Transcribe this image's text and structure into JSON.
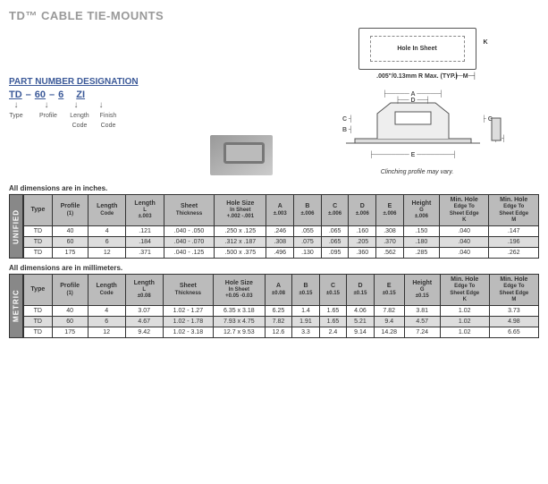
{
  "title": "TD™ CABLE TIE-MOUNTS",
  "diagram": {
    "hole_label": "Hole In Sheet",
    "radius_note": ".005\"/0.13mm R Max.\n(TYP.)",
    "profile_caption": "Clinching profile may vary.",
    "dims": {
      "A": "A",
      "B": "B",
      "C": "C",
      "D": "D",
      "E": "E",
      "G": "G",
      "K": "K",
      "M": "M",
      "L": "L"
    }
  },
  "part_number": {
    "title": "PART NUMBER DESIGNATION",
    "parts": [
      {
        "code": "TD",
        "label": "Type"
      },
      {
        "code": "60",
        "label": "Profile"
      },
      {
        "code": "6",
        "label": "Length\nCode"
      },
      {
        "code": "ZI",
        "label": "Finish\nCode"
      }
    ],
    "sep": "–"
  },
  "tables": {
    "unified": {
      "caption": "All dimensions are in inches.",
      "side": "UNIFIED",
      "headers": [
        "Type",
        "Profile\n(1)",
        "Length\nCode",
        "Length\nL\n±.003",
        "Sheet\nThickness",
        "Hole Size\nIn Sheet\n+.002 -.001",
        "A\n±.003",
        "B\n±.006",
        "C\n±.006",
        "D\n±.006",
        "E\n±.006",
        "Height\nG\n±.006",
        "Min. Hole\nEdge To\nSheet Edge\nK",
        "Min. Hole\nEdge To\nSheet Edge\nM"
      ],
      "rows": [
        [
          "TD",
          "40",
          "4",
          ".121",
          ".040 - .050",
          ".250 x .125",
          ".246",
          ".055",
          ".065",
          ".160",
          ".308",
          ".150",
          ".040",
          ".147"
        ],
        [
          "TD",
          "60",
          "6",
          ".184",
          ".040 - .070",
          ".312 x .187",
          ".308",
          ".075",
          ".065",
          ".205",
          ".370",
          ".180",
          ".040",
          ".196"
        ],
        [
          "TD",
          "175",
          "12",
          ".371",
          ".040 - .125",
          ".500 x .375",
          ".496",
          ".130",
          ".095",
          ".360",
          ".562",
          ".285",
          ".040",
          ".262"
        ]
      ]
    },
    "metric": {
      "caption": "All dimensions are in millimeters.",
      "side": "METRIC",
      "headers": [
        "Type",
        "Profile\n(1)",
        "Length\nCode",
        "Length\nL\n±0.08",
        "Sheet\nThickness",
        "Hole Size\nIn Sheet\n+0.05 -0.03",
        "A\n±0.08",
        "B\n±0.15",
        "C\n±0.15",
        "D\n±0.15",
        "E\n±0.15",
        "Height\nG\n±0.15",
        "Min. Hole\nEdge To\nSheet Edge\nK",
        "Min. Hole\nEdge To\nSheet Edge\nM"
      ],
      "rows": [
        [
          "TD",
          "40",
          "4",
          "3.07",
          "1.02 - 1.27",
          "6.35 x 3.18",
          "6.25",
          "1.4",
          "1.65",
          "4.06",
          "7.82",
          "3.81",
          "1.02",
          "3.73"
        ],
        [
          "TD",
          "60",
          "6",
          "4.67",
          "1.02 - 1.78",
          "7.93 x 4.75",
          "7.82",
          "1.91",
          "1.65",
          "5.21",
          "9.4",
          "4.57",
          "1.02",
          "4.98"
        ],
        [
          "TD",
          "175",
          "12",
          "9.42",
          "1.02 - 3.18",
          "12.7 x 9.53",
          "12.6",
          "3.3",
          "2.4",
          "9.14",
          "14.28",
          "7.24",
          "1.02",
          "6.65"
        ]
      ]
    }
  },
  "colors": {
    "title_gray": "#999999",
    "link_blue": "#3b5998",
    "header_bg": "#bbbbbb",
    "row_alt": "#dddddd",
    "side_bg": "#888888",
    "border": "#333333"
  }
}
